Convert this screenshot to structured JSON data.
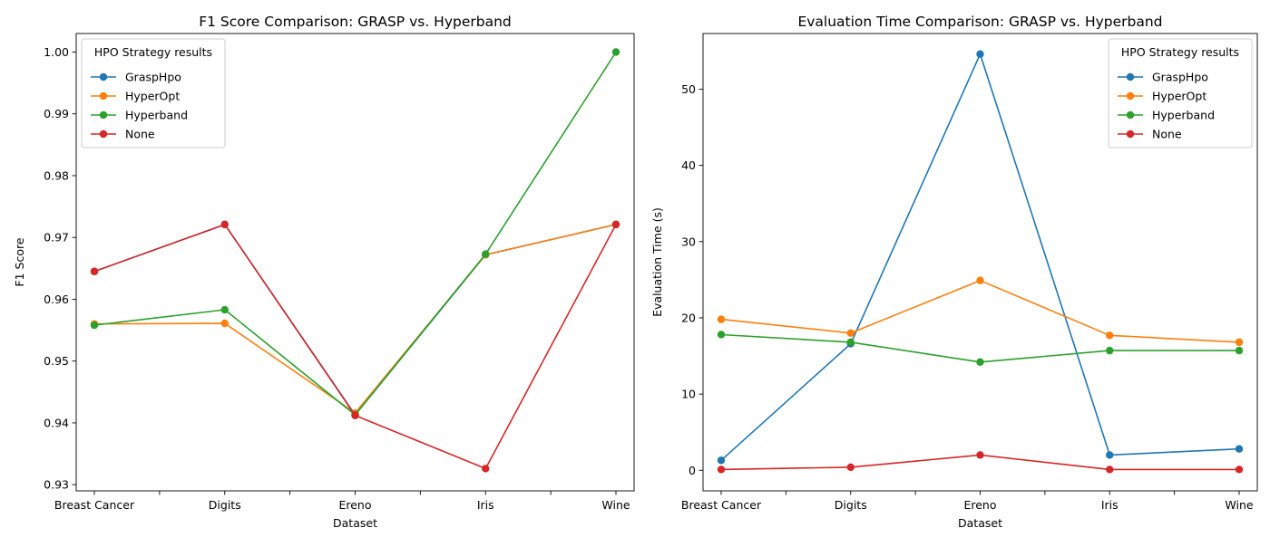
{
  "chart_data": [
    {
      "type": "line",
      "title": "F1 Score Comparison: GRASP vs. Hyperband",
      "xlabel": "Dataset",
      "ylabel": "F1 Score",
      "categories": [
        "Breast Cancer",
        "Digits",
        "Ereno",
        "Iris",
        "Wine"
      ],
      "ylim": [
        0.929,
        1.003
      ],
      "yticks": [
        0.93,
        0.94,
        0.95,
        0.96,
        0.97,
        0.98,
        0.99,
        1.0
      ],
      "ytick_labels": [
        "0.93",
        "0.94",
        "0.95",
        "0.96",
        "0.97",
        "0.98",
        "0.99",
        "1.00"
      ],
      "grid": false,
      "legend": {
        "title": "HPO Strategy results",
        "placement": "top-left"
      },
      "series": [
        {
          "name": "GraspHpo",
          "color": "#1f77b4",
          "values": [
            0.9645,
            0.9721,
            0.9413,
            0.9672,
            0.9721
          ]
        },
        {
          "name": "HyperOpt",
          "color": "#ff7f0e",
          "values": [
            0.956,
            0.9561,
            0.9416,
            0.9672,
            0.9721
          ]
        },
        {
          "name": "Hyperband",
          "color": "#2ca02c",
          "values": [
            0.9558,
            0.9583,
            0.9413,
            0.9673,
            1.0
          ]
        },
        {
          "name": "None",
          "color": "#d62728",
          "values": [
            0.9645,
            0.9721,
            0.9412,
            0.9326,
            0.9721
          ]
        }
      ]
    },
    {
      "type": "line",
      "title": "Evaluation Time Comparison: GRASP vs. Hyperband",
      "xlabel": "Dataset",
      "ylabel": "Evaluation Time (s)",
      "categories": [
        "Breast Cancer",
        "Digits",
        "Ereno",
        "Iris",
        "Wine"
      ],
      "ylim": [
        -2.7,
        57.3
      ],
      "yticks": [
        0,
        10,
        20,
        30,
        40,
        50
      ],
      "ytick_labels": [
        "0",
        "10",
        "20",
        "30",
        "40",
        "50"
      ],
      "grid": false,
      "legend": {
        "title": "HPO Strategy results",
        "placement": "top-right"
      },
      "series": [
        {
          "name": "GraspHpo",
          "color": "#1f77b4",
          "values": [
            1.3,
            16.6,
            54.6,
            2.0,
            2.8
          ]
        },
        {
          "name": "HyperOpt",
          "color": "#ff7f0e",
          "values": [
            19.8,
            18.0,
            24.9,
            17.7,
            16.8
          ]
        },
        {
          "name": "Hyperband",
          "color": "#2ca02c",
          "values": [
            17.8,
            16.8,
            14.2,
            15.7,
            15.7
          ]
        },
        {
          "name": "None",
          "color": "#d62728",
          "values": [
            0.1,
            0.4,
            2.0,
            0.1,
            0.1
          ]
        }
      ]
    }
  ]
}
